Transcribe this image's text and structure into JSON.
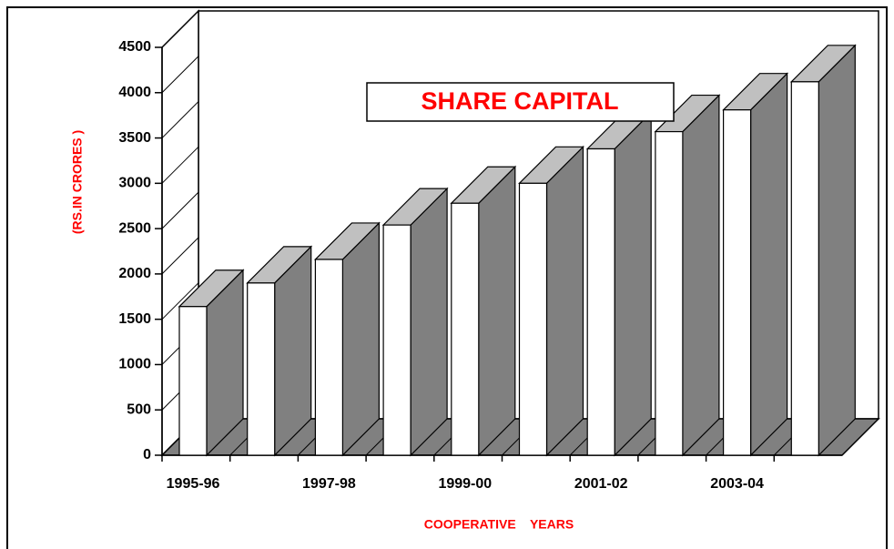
{
  "chart_data": {
    "type": "bar3d",
    "title": "SHARE CAPITAL",
    "y_label": "(RS.IN CRORES )",
    "x_label": "COOPERATIVE    YEARS",
    "categories": [
      "1995-96",
      null,
      "1997-98",
      null,
      "1999-00",
      null,
      "2001-02",
      null,
      "2003-04",
      null
    ],
    "values": [
      1640,
      1900,
      2160,
      2540,
      2780,
      3000,
      3380,
      3570,
      3810,
      4120
    ],
    "color": "#ffffff",
    "side_color": "#808080",
    "top_color": "#c0c0c0",
    "ylim": [
      0,
      4500
    ],
    "yticks": [
      0,
      500,
      1000,
      1500,
      2000,
      2500,
      3000,
      3500,
      4000,
      4500
    ]
  }
}
